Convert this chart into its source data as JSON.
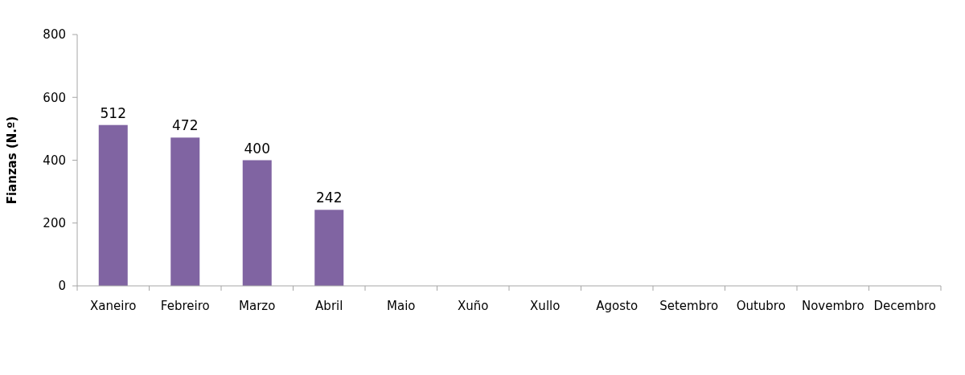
{
  "chart_data": {
    "type": "bar",
    "ylabel": "Fianzas (N.º)",
    "categories": [
      "Xaneiro",
      "Febreiro",
      "Marzo",
      "Abril",
      "Maio",
      "Xuño",
      "Xullo",
      "Agosto",
      "Setembro",
      "Outubro",
      "Novembro",
      "Decembro"
    ],
    "values": [
      512,
      472,
      400,
      242,
      null,
      null,
      null,
      null,
      null,
      null,
      null,
      null
    ],
    "color": "#8064a2",
    "ylim": [
      0,
      800
    ],
    "yticks": [
      0,
      200,
      400,
      600,
      800
    ],
    "grid": false,
    "data_labels": true
  }
}
